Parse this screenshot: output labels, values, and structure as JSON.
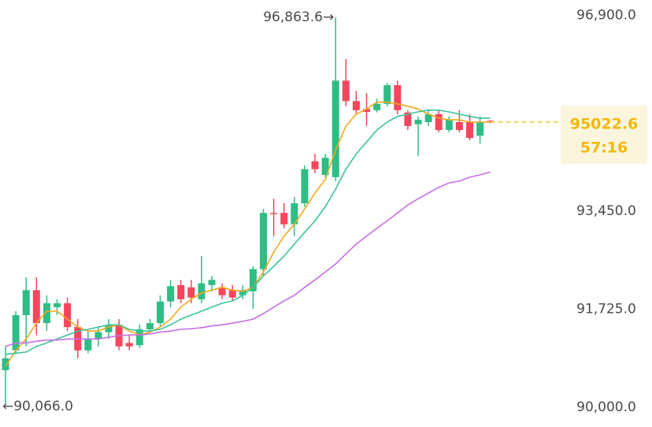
{
  "chart_data": {
    "type": "candlestick",
    "up_color": "#2ebd85",
    "down_color": "#f6465d",
    "ylim": [
      89650,
      97170
    ],
    "yticks": [
      {
        "value": 90000,
        "label": "90,000.0"
      },
      {
        "value": 91725,
        "label": "91,725.0"
      },
      {
        "value": 93450,
        "label": "93,450.0"
      },
      {
        "value": 96900,
        "label": "96,900.0"
      }
    ],
    "open": [
      90650,
      91000,
      91620,
      92060,
      91480,
      91760,
      91830,
      91410,
      91000,
      91200,
      91320,
      91450,
      91130,
      91090,
      91370,
      91480,
      91860,
      92150,
      92110,
      91900,
      92150,
      92110,
      92060,
      91970,
      92040,
      92430,
      93420,
      93420,
      93220,
      93590,
      94330,
      94090,
      94050,
      95750,
      95390,
      95250,
      95230,
      95340,
      95670,
      95190,
      94980,
      95020,
      95160,
      94880,
      95020,
      95020,
      94780,
      95040
    ],
    "high": [
      91070,
      91690,
      92290,
      92290,
      91970,
      91900,
      91930,
      91550,
      91340,
      91410,
      91550,
      91550,
      91270,
      91450,
      91550,
      91970,
      92240,
      92240,
      92240,
      92660,
      92310,
      92180,
      92150,
      92150,
      92480,
      93490,
      93670,
      93590,
      93700,
      94260,
      94460,
      94460,
      96863.6,
      96130,
      95570,
      95530,
      95430,
      95710,
      95750,
      95230,
      95120,
      95250,
      95230,
      95120,
      95230,
      95160,
      95120,
      95060
    ],
    "low": [
      90066.0,
      90930,
      91070,
      91270,
      91340,
      91620,
      91340,
      90860,
      90950,
      91070,
      91200,
      91000,
      91000,
      91040,
      91340,
      91410,
      91760,
      91830,
      91830,
      91830,
      92040,
      91900,
      91870,
      91900,
      91730,
      92310,
      93010,
      93150,
      93010,
      93530,
      94120,
      94050,
      93980,
      95300,
      95160,
      94950,
      95190,
      95300,
      95160,
      94880,
      94420,
      94950,
      94840,
      94840,
      94840,
      94700,
      94640,
      95000
    ],
    "close": [
      90860,
      91620,
      92060,
      91480,
      91830,
      91830,
      91410,
      91000,
      91200,
      91320,
      91450,
      91070,
      91070,
      91370,
      91480,
      91860,
      92130,
      91900,
      91930,
      92180,
      92240,
      91970,
      91930,
      92060,
      92430,
      93420,
      93400,
      93220,
      93590,
      94190,
      94190,
      94390,
      95750,
      95390,
      95230,
      95200,
      95340,
      95670,
      95230,
      94950,
      95060,
      95160,
      94880,
      95060,
      94880,
      94740,
      95020,
      95022.6
    ],
    "lines": [
      {
        "color": "#f0a81c",
        "values": [
          90720,
          91000,
          91200,
          91480,
          91690,
          91690,
          91550,
          91410,
          91340,
          91340,
          91410,
          91450,
          91340,
          91270,
          91320,
          91410,
          91550,
          91760,
          91900,
          92010,
          92060,
          92110,
          92060,
          92040,
          92110,
          92380,
          92730,
          93010,
          93220,
          93490,
          93770,
          94010,
          94530,
          94950,
          95160,
          95250,
          95370,
          95370,
          95340,
          95300,
          95250,
          95160,
          95090,
          95060,
          95060,
          95020,
          95020,
          95020
        ]
      },
      {
        "color": "#3cc49a",
        "values": [
          90930,
          90950,
          90970,
          91070,
          91130,
          91200,
          91270,
          91340,
          91370,
          91410,
          91450,
          91450,
          91370,
          91340,
          91340,
          91370,
          91450,
          91550,
          91620,
          91690,
          91760,
          91830,
          91870,
          91970,
          92110,
          92310,
          92480,
          92660,
          92870,
          93080,
          93280,
          93530,
          93840,
          94190,
          94460,
          94670,
          94880,
          95020,
          95120,
          95160,
          95200,
          95230,
          95230,
          95200,
          95160,
          95120,
          95090,
          95090
        ]
      },
      {
        "color": "#c86ee6",
        "values": [
          91070,
          91130,
          91130,
          91160,
          91180,
          91180,
          91200,
          91200,
          91200,
          91200,
          91230,
          91260,
          91270,
          91270,
          91290,
          91320,
          91340,
          91370,
          91380,
          91400,
          91430,
          91450,
          91480,
          91510,
          91550,
          91650,
          91760,
          91870,
          91970,
          92110,
          92240,
          92380,
          92520,
          92700,
          92870,
          93010,
          93150,
          93280,
          93420,
          93560,
          93670,
          93770,
          93870,
          93950,
          93980,
          94050,
          94090,
          94140
        ]
      }
    ],
    "high_label": "96,863.6→",
    "low_label": "←90,066.0",
    "last_price": 95022.6,
    "countdown": "57:16",
    "price_color": "#f0b90b"
  }
}
